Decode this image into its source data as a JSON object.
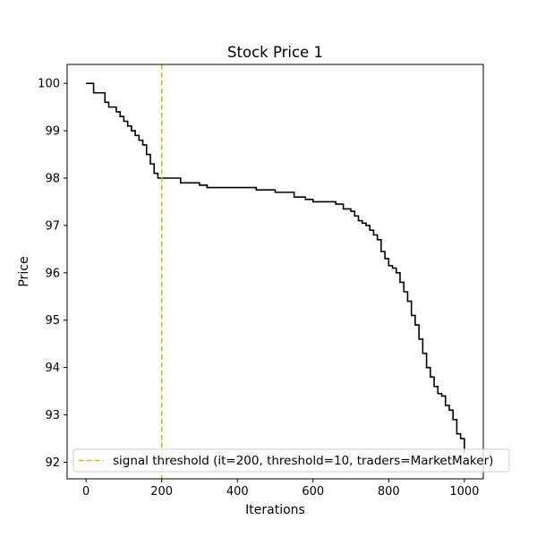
{
  "chart_data": {
    "type": "line",
    "title": "Stock Price 1",
    "xlabel": "Iterations",
    "ylabel": "Price",
    "xlim": [
      -50,
      1050
    ],
    "ylim": [
      91.65,
      100.4
    ],
    "xticks": [
      0,
      200,
      400,
      600,
      800,
      1000
    ],
    "yticks": [
      92,
      93,
      94,
      95,
      96,
      97,
      98,
      99,
      100
    ],
    "grid": false,
    "legend_position": "lower-left",
    "series": [
      {
        "color": "#000000",
        "style": "solid",
        "x": [
          0,
          10,
          20,
          30,
          40,
          50,
          60,
          70,
          80,
          90,
          100,
          110,
          120,
          130,
          140,
          150,
          160,
          170,
          180,
          190,
          200,
          220,
          250,
          280,
          300,
          320,
          350,
          380,
          400,
          420,
          450,
          480,
          500,
          520,
          550,
          580,
          600,
          620,
          640,
          660,
          680,
          700,
          710,
          720,
          730,
          740,
          750,
          760,
          770,
          780,
          790,
          800,
          810,
          820,
          830,
          840,
          850,
          860,
          870,
          880,
          890,
          900,
          910,
          920,
          930,
          940,
          950,
          960,
          970,
          980,
          990,
          1000
        ],
        "y": [
          100.0,
          100.0,
          99.8,
          99.8,
          99.8,
          99.6,
          99.5,
          99.5,
          99.4,
          99.3,
          99.2,
          99.1,
          99.0,
          98.9,
          98.8,
          98.7,
          98.5,
          98.3,
          98.1,
          98.0,
          98.0,
          98.0,
          97.9,
          97.9,
          97.85,
          97.8,
          97.8,
          97.8,
          97.8,
          97.8,
          97.75,
          97.75,
          97.7,
          97.7,
          97.6,
          97.55,
          97.5,
          97.5,
          97.5,
          97.45,
          97.35,
          97.3,
          97.2,
          97.1,
          97.05,
          97.0,
          96.9,
          96.8,
          96.7,
          96.45,
          96.3,
          96.15,
          96.1,
          96.0,
          95.8,
          95.6,
          95.4,
          95.1,
          94.9,
          94.6,
          94.3,
          94.0,
          93.8,
          93.6,
          93.45,
          93.4,
          93.2,
          93.1,
          92.9,
          92.6,
          92.5,
          92.2
        ]
      },
      {
        "name": "signal threshold (it=200, threshold=10, traders=MarketMaker)",
        "color": "#bcbd22",
        "style": "dashed",
        "x_value": 200
      }
    ]
  }
}
